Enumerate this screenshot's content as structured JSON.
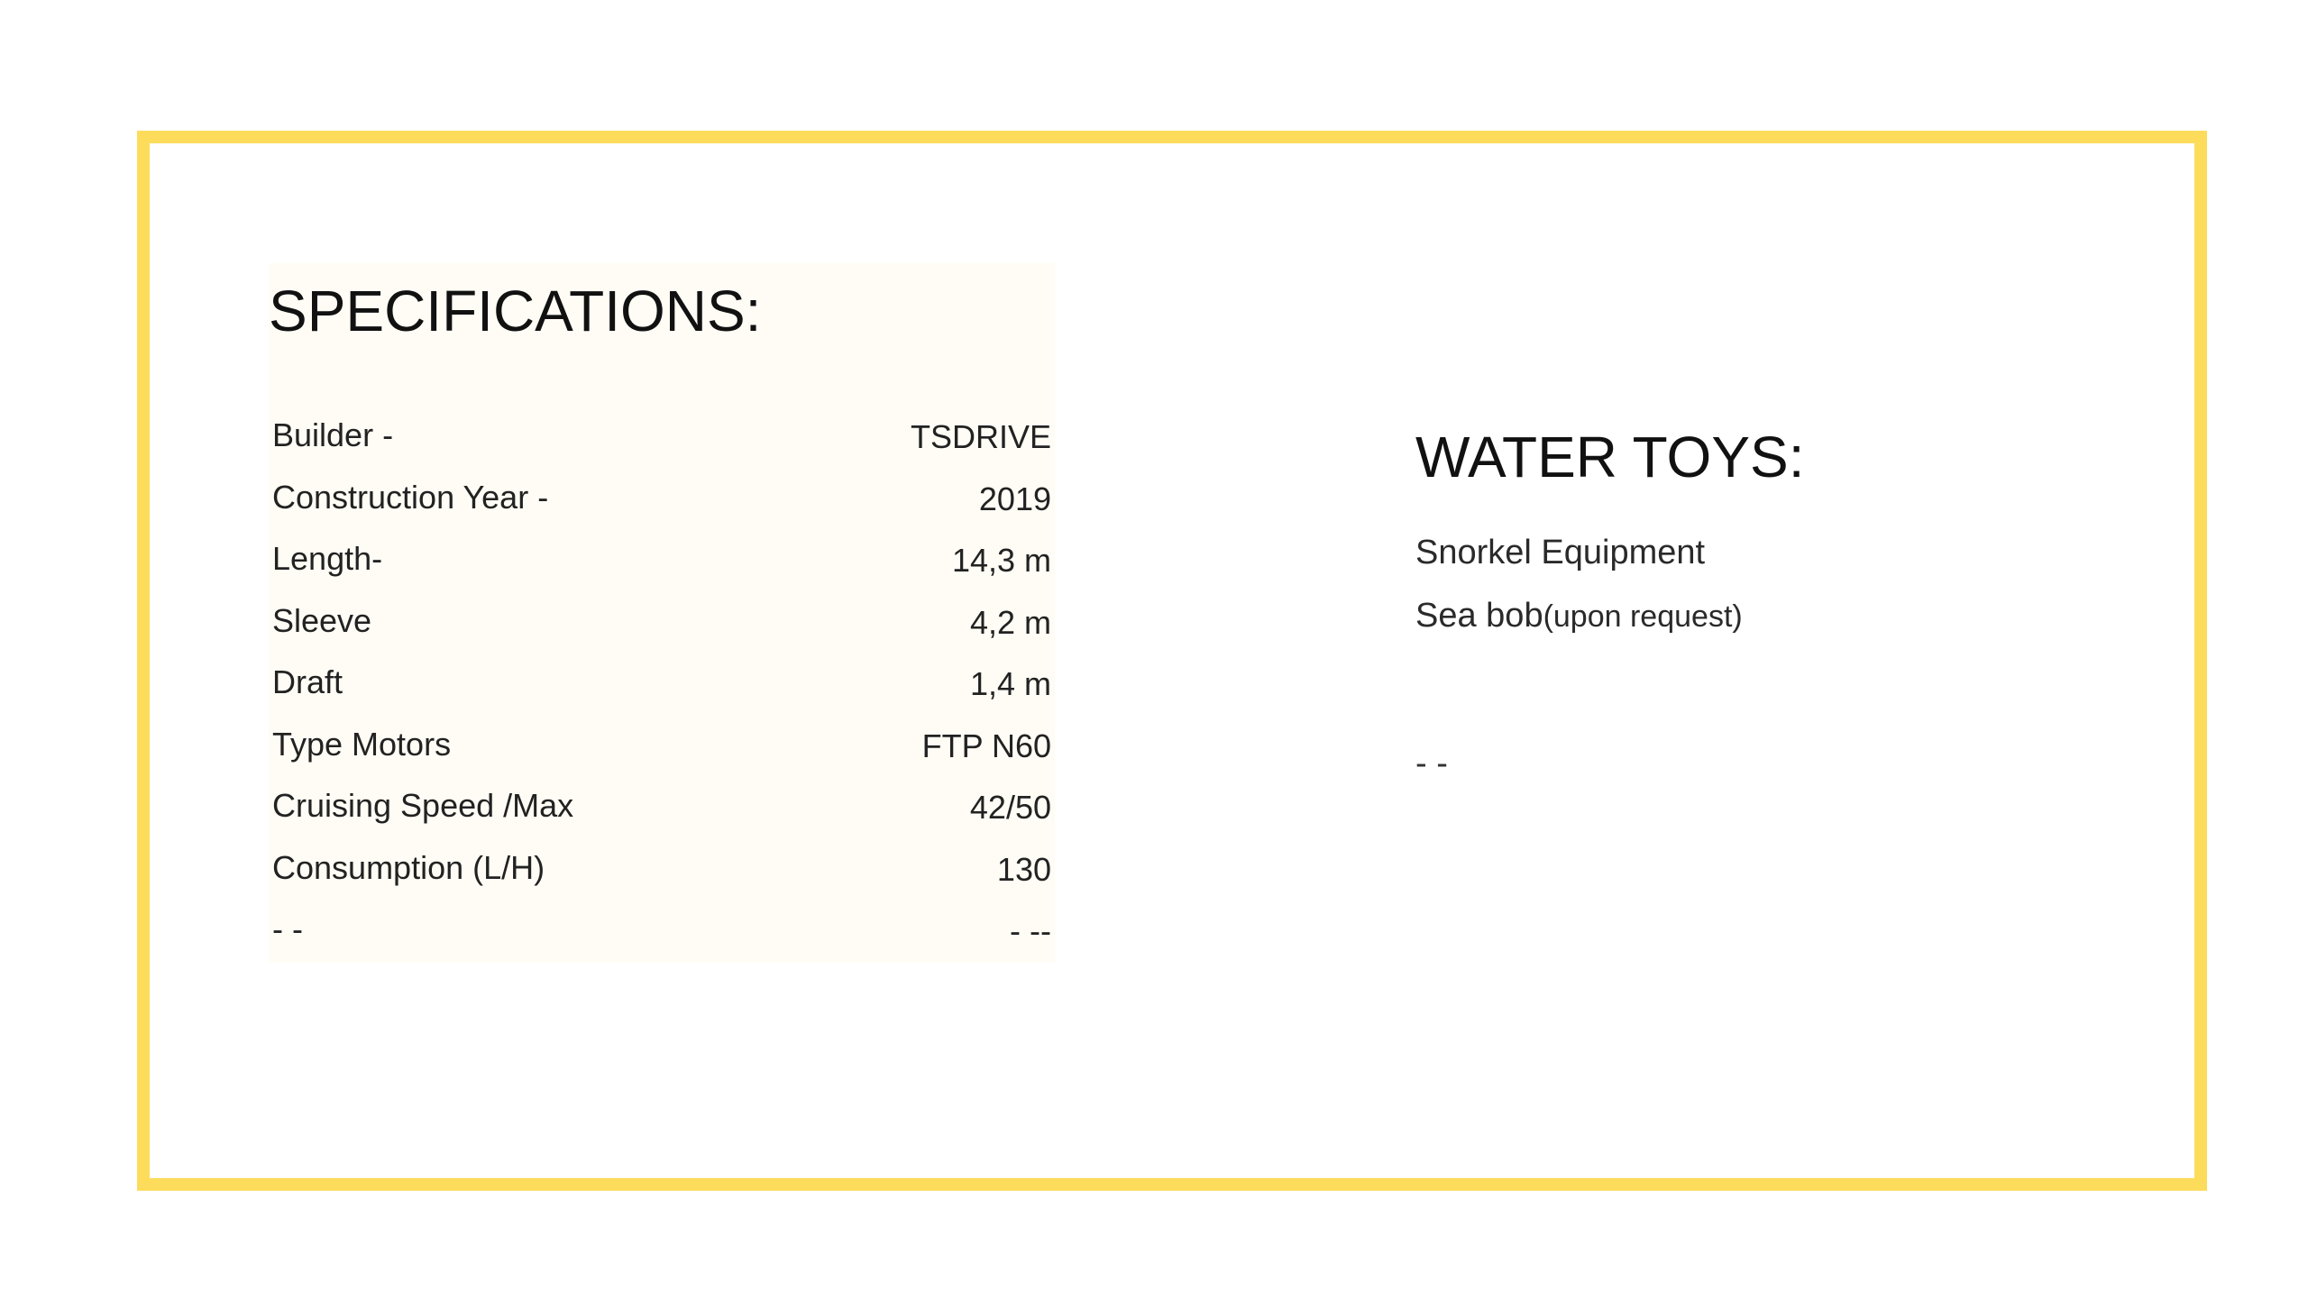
{
  "colors": {
    "frame_border": "#fddc5c",
    "spec_panel_bg": "#fffcf5",
    "text": "#1a1a1a"
  },
  "specifications": {
    "title": "SPECIFICATIONS:",
    "rows": [
      {
        "label": "Builder -",
        "value": "TSDRIVE"
      },
      {
        "label": "Construction Year -",
        "value": "2019"
      },
      {
        "label": "Length-",
        "value": "14,3 m"
      },
      {
        "label": "Sleeve",
        "value": "4,2 m"
      },
      {
        "label": "Draft",
        "value": "1,4 m"
      },
      {
        "label": "Type Motors",
        "value": "FTP N60"
      },
      {
        "label": "Cruising Speed /Max",
        "value": "42/50"
      },
      {
        "label": "Consumption (L/H)",
        "value": "130"
      },
      {
        "label": "- -",
        "value": "- --"
      }
    ]
  },
  "water_toys": {
    "title": "WATER TOYS:",
    "items": [
      {
        "text": "Snorkel Equipment",
        "note": ""
      },
      {
        "text": "Sea bob",
        "note": "(upon request)"
      }
    ],
    "trailing": "- -"
  }
}
